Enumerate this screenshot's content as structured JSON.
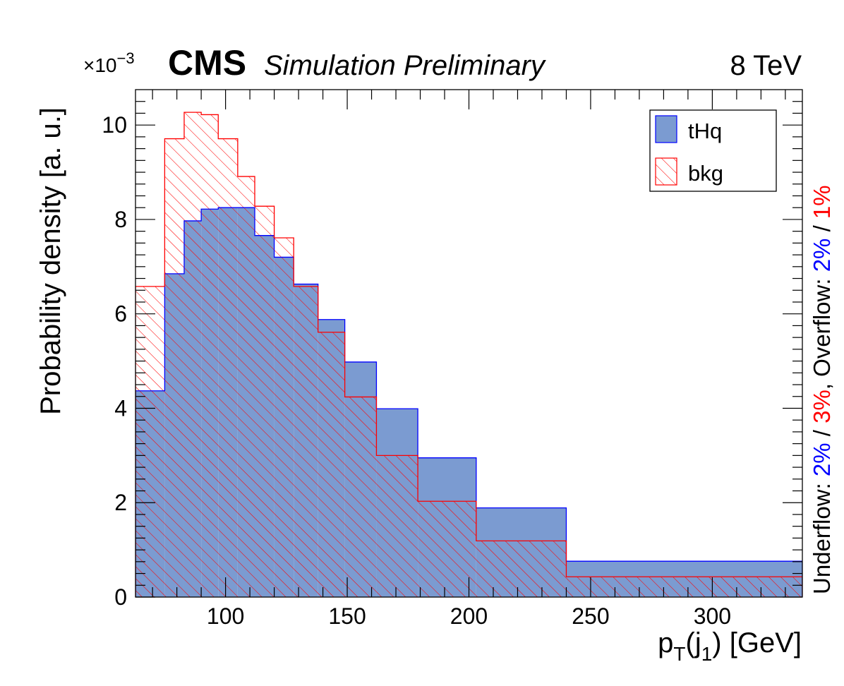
{
  "header": {
    "cms": "CMS",
    "simulation": "Simulation Preliminary",
    "energy": "8 TeV",
    "scale_prefix": "×10",
    "scale_exponent": "−3"
  },
  "side_note": {
    "underflow_label": "Underflow: ",
    "underflow_sig": "2%",
    "sep1": " / ",
    "underflow_bkg": "3%",
    "comma": ",  Overflow: ",
    "overflow_sig": "2%",
    "sep2": " / ",
    "overflow_bkg": "1%"
  },
  "chart_data": {
    "type": "bar",
    "xlabel_main": "p",
    "xlabel_sub1": "T",
    "xlabel_mid": "(j",
    "xlabel_sub2": "1",
    "xlabel_tail": ") [GeV]",
    "ylabel": "Probability density [a. u.]",
    "xlim": [
      63,
      337
    ],
    "ylim": [
      0,
      10.75
    ],
    "y_scale_note": "×10^-3",
    "x_ticks": [
      100,
      150,
      200,
      250,
      300
    ],
    "x_tick_labels": [
      "100",
      "150",
      "200",
      "250",
      "300"
    ],
    "y_ticks": [
      0,
      2,
      4,
      6,
      8,
      10
    ],
    "y_tick_labels": [
      "0",
      "2",
      "4",
      "6",
      "8",
      "10"
    ],
    "bin_edges": [
      63,
      75,
      83,
      90,
      97,
      105,
      112,
      120,
      128,
      138,
      149,
      162,
      179,
      203,
      240,
      337
    ],
    "series": [
      {
        "name": "tHq",
        "style": "filled",
        "color": "#7b9bd1",
        "edge_color": "#0000ff",
        "values": [
          4.37,
          6.85,
          7.97,
          8.22,
          8.25,
          8.25,
          7.66,
          7.2,
          6.63,
          5.88,
          4.98,
          3.99,
          2.95,
          1.89,
          0.76
        ]
      },
      {
        "name": "bkg",
        "style": "hatched",
        "color": "#ff0000",
        "values": [
          6.58,
          9.71,
          10.27,
          10.22,
          9.71,
          8.91,
          8.28,
          7.61,
          6.58,
          5.61,
          4.24,
          3.0,
          2.03,
          1.19,
          0.43
        ]
      }
    ],
    "legend": {
      "position": "top-right",
      "entries": [
        "tHq",
        "bkg"
      ]
    },
    "colors": {
      "signal_fill": "#7b9bd1",
      "signal_line": "#0000ff",
      "bkg_line": "#ff0000"
    }
  }
}
